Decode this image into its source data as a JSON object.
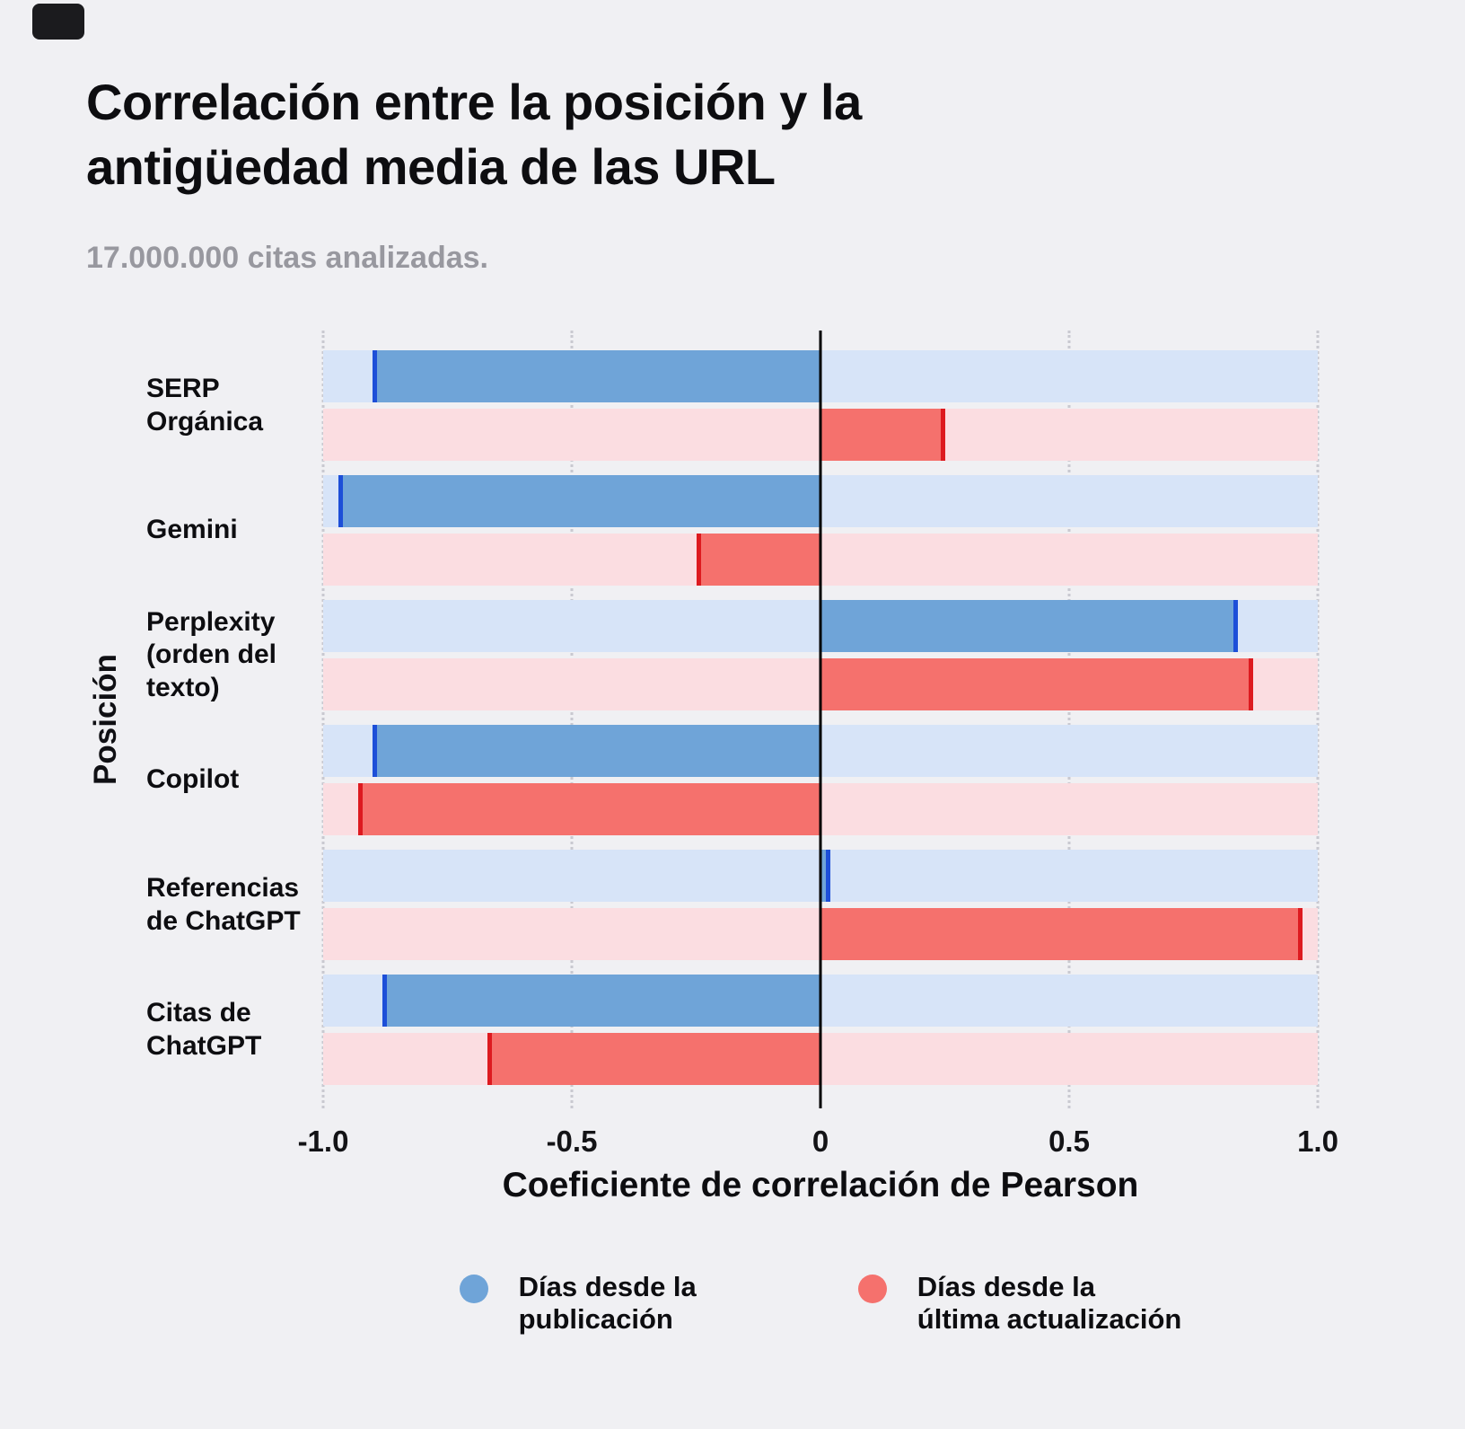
{
  "page": {
    "background": "#F0F0F3",
    "corner_badge_color": "#1B1B1E"
  },
  "header": {
    "title_line1": "Correlación entre la posición y la",
    "title_line2": "antigüedad media de las URL",
    "subtitle": "17.000.000 citas analizadas."
  },
  "chart_data": {
    "type": "bar",
    "orientation": "horizontal",
    "title": "Correlación entre la posición y la antigüedad media de las URL",
    "subtitle": "17.000.000 citas analizadas.",
    "xlabel": "Coeficiente de correlación de Pearson",
    "ylabel": "Posición",
    "xlim": [
      -1.0,
      1.0
    ],
    "grid": "dotted-vertical",
    "zero_line": true,
    "xticks": [
      {
        "value": -1.0,
        "label": "-1.0"
      },
      {
        "value": -0.5,
        "label": "-0.5"
      },
      {
        "value": 0,
        "label": "0"
      },
      {
        "value": 0.5,
        "label": "0.5"
      },
      {
        "value": 1.0,
        "label": "1.0"
      }
    ],
    "categories": [
      "SERP Orgánica",
      "Gemini",
      "Perplexity (orden del texto)",
      "Copilot",
      "Referencias de ChatGPT",
      "Citas de ChatGPT"
    ],
    "category_display": [
      "SERP\nOrgánica",
      "Gemini",
      "Perplexity\n(orden del\ntexto)",
      "Copilot",
      "Referencias\nde ChatGPT",
      "Citas de\nChatGPT"
    ],
    "series": [
      {
        "name": "Días desde la publicación",
        "color": "#6FA4D8",
        "track_color": "#D7E4F8",
        "cap_color": "#1D4FD8",
        "values": [
          -0.9,
          -0.97,
          0.84,
          -0.9,
          0.02,
          -0.88
        ]
      },
      {
        "name": "Días desde la última actualización",
        "color": "#F5716D",
        "track_color": "#FBDDE1",
        "cap_color": "#DD1A1F",
        "values": [
          0.25,
          -0.25,
          0.87,
          -0.93,
          0.97,
          -0.67
        ]
      }
    ],
    "legend": [
      {
        "label": "Días desde la\npublicación",
        "color": "#6FA4D8"
      },
      {
        "label": "Días desde la\núltima actualización",
        "color": "#F5716D"
      }
    ]
  }
}
